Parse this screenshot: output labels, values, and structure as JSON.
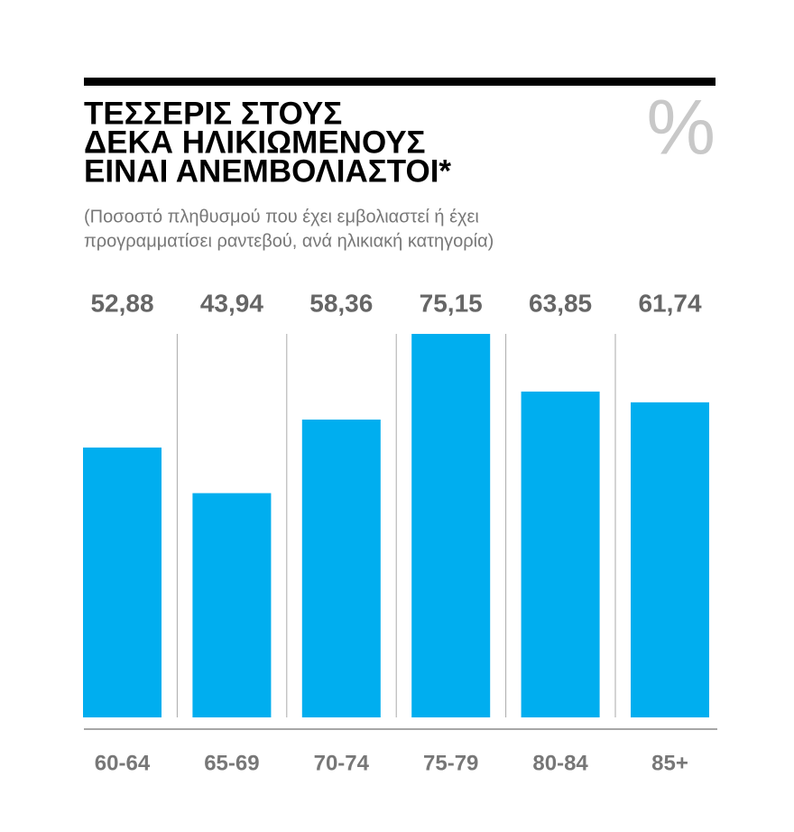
{
  "chart_data": {
    "type": "bar",
    "title": [
      "ΤΕΣΣΕΡΙΣ ΣΤΟΥΣ",
      "ΔΕΚΑ ΗΛΙΚΙΩΜΕΝΟΥΣ",
      "ΕΙΝΑΙ ΑΝΕΜΒΟΛΙΑΣΤΟΙ*"
    ],
    "subtitle": [
      "(Ποσοστό πληθυσμού που έχει εμβολιαστεί ή έχει",
      "προγραμματίσει ραντεβού, ανά ηλικιακή κατηγορία)"
    ],
    "unit": "%",
    "categories": [
      "60-64",
      "65-69",
      "70-74",
      "75-79",
      "80-84",
      "85+"
    ],
    "values": [
      52.88,
      43.94,
      58.36,
      75.15,
      63.85,
      61.74
    ],
    "value_labels": [
      "52,88",
      "43,94",
      "58,36",
      "75,15",
      "63,85",
      "61,74"
    ],
    "color": "#00aeef"
  }
}
